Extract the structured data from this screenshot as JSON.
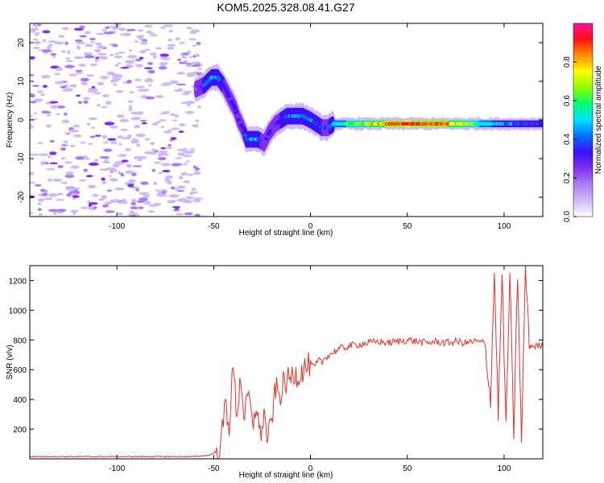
{
  "figure": {
    "title": "KOM5.2025.328.08.41.G27"
  },
  "colormap": [
    "#ffffff",
    "#cfbaf5",
    "#a97ff0",
    "#7f2ff0",
    "#3d10f5",
    "#0070ff",
    "#00e0ff",
    "#00ff70",
    "#8fff00",
    "#ffff00",
    "#ff9000",
    "#ff1010",
    "#ff10a0"
  ],
  "chart_data": [
    {
      "type": "heatmap",
      "title": "",
      "xlabel": "Height of straight line (km)",
      "ylabel": "Frequency (Hz)",
      "xlim": [
        -145,
        120
      ],
      "ylim": [
        -25,
        25
      ],
      "xticks": [
        -100,
        -50,
        0,
        50,
        100
      ],
      "yticks": [
        -20,
        -10,
        0,
        10,
        20
      ],
      "xtick_labels": [
        "-100",
        "-50",
        "0",
        "50",
        "100"
      ],
      "ytick_labels": [
        "-20",
        "-10",
        "0",
        "10",
        "20"
      ],
      "noise_region_x": [
        -145,
        -57
      ],
      "colorbar": {
        "label": "Normalized spectral amplitude",
        "range": [
          0,
          1
        ],
        "ticks": [
          0.0,
          0.2,
          0.4,
          0.6,
          0.8
        ],
        "tick_labels": [
          "0.0",
          "0.2",
          "0.4",
          "0.6",
          "0.8"
        ]
      },
      "ridge": [
        {
          "x": -59,
          "y": 8,
          "a": 0.25
        },
        {
          "x": -55,
          "y": 9,
          "a": 0.35
        },
        {
          "x": -51,
          "y": 11,
          "a": 0.45
        },
        {
          "x": -48,
          "y": 11,
          "a": 0.4
        },
        {
          "x": -45,
          "y": 9,
          "a": 0.35
        },
        {
          "x": -42,
          "y": 6,
          "a": 0.3
        },
        {
          "x": -39,
          "y": 3,
          "a": 0.3
        },
        {
          "x": -37,
          "y": 0,
          "a": 0.3
        },
        {
          "x": -35,
          "y": -2,
          "a": 0.3
        },
        {
          "x": -33,
          "y": -5,
          "a": 0.4
        },
        {
          "x": -30,
          "y": -5,
          "a": 0.45
        },
        {
          "x": -27,
          "y": -5,
          "a": 0.4
        },
        {
          "x": -24,
          "y": -6,
          "a": 0.3
        },
        {
          "x": -21,
          "y": -3,
          "a": 0.3
        },
        {
          "x": -18,
          "y": -1,
          "a": 0.3
        },
        {
          "x": -15,
          "y": 0,
          "a": 0.35
        },
        {
          "x": -12,
          "y": 1,
          "a": 0.4
        },
        {
          "x": -8,
          "y": 1,
          "a": 0.45
        },
        {
          "x": -4,
          "y": 1,
          "a": 0.45
        },
        {
          "x": 0,
          "y": 0,
          "a": 0.4
        },
        {
          "x": 3,
          "y": -1,
          "a": 0.35
        },
        {
          "x": 6,
          "y": -2,
          "a": 0.35
        },
        {
          "x": 9,
          "y": -2,
          "a": 0.3
        },
        {
          "x": 12,
          "y": -1,
          "a": 0.5
        },
        {
          "x": 20,
          "y": -1,
          "a": 0.6
        },
        {
          "x": 30,
          "y": -1,
          "a": 0.7
        },
        {
          "x": 40,
          "y": -1,
          "a": 0.85
        },
        {
          "x": 50,
          "y": -1,
          "a": 0.95
        },
        {
          "x": 60,
          "y": -1,
          "a": 0.9
        },
        {
          "x": 70,
          "y": -1,
          "a": 0.85
        },
        {
          "x": 80,
          "y": -1,
          "a": 0.7
        },
        {
          "x": 90,
          "y": -1,
          "a": 0.55
        },
        {
          "x": 95,
          "y": -1,
          "a": 0.45
        },
        {
          "x": 100,
          "y": -1,
          "a": 0.45
        },
        {
          "x": 105,
          "y": -1,
          "a": 0.4
        },
        {
          "x": 110,
          "y": -1,
          "a": 0.35
        },
        {
          "x": 115,
          "y": -1,
          "a": 0.35
        },
        {
          "x": 120,
          "y": -1,
          "a": 0.35
        }
      ]
    },
    {
      "type": "line",
      "title": "",
      "xlabel": "Height of straight line (km)",
      "ylabel": "SNR (v/v)",
      "xlim": [
        -145,
        120
      ],
      "ylim": [
        0,
        1300
      ],
      "xticks": [
        -100,
        -50,
        0,
        50,
        100
      ],
      "yticks": [
        200,
        400,
        600,
        800,
        1000,
        1200
      ],
      "xtick_labels": [
        "-100",
        "-50",
        "0",
        "50",
        "100"
      ],
      "ytick_labels": [
        "200",
        "400",
        "600",
        "800",
        "1000",
        "1200"
      ],
      "color": "#e8322a",
      "series": [
        {
          "name": "SNR",
          "x": [
            -145,
            -120,
            -100,
            -80,
            -60,
            -52,
            -48,
            -46,
            -44,
            -42,
            -40,
            -38,
            -36,
            -34,
            -32,
            -30,
            -28,
            -26,
            -24,
            -22,
            -20,
            -18,
            -16,
            -14,
            -12,
            -10,
            -8,
            -6,
            -4,
            -2,
            0,
            2,
            4,
            6,
            8,
            10,
            12,
            15,
            18,
            20,
            25,
            30,
            35,
            40,
            45,
            50,
            55,
            60,
            65,
            70,
            75,
            80,
            85,
            90,
            93,
            95,
            97,
            99,
            101,
            103,
            105,
            107,
            109,
            111,
            113,
            115,
            118,
            120
          ],
          "y": [
            15,
            15,
            15,
            15,
            15,
            25,
            60,
            120,
            380,
            220,
            620,
            300,
            560,
            250,
            450,
            200,
            380,
            150,
            300,
            120,
            260,
            480,
            420,
            500,
            520,
            550,
            580,
            560,
            600,
            620,
            640,
            610,
            660,
            650,
            690,
            700,
            720,
            740,
            750,
            760,
            770,
            780,
            790,
            780,
            790,
            800,
            790,
            780,
            790,
            780,
            790,
            780,
            790,
            780,
            400,
            1250,
            300,
            1250,
            200,
            1250,
            150,
            1250,
            80,
            1300,
            760,
            760,
            760,
            760
          ]
        }
      ]
    }
  ]
}
